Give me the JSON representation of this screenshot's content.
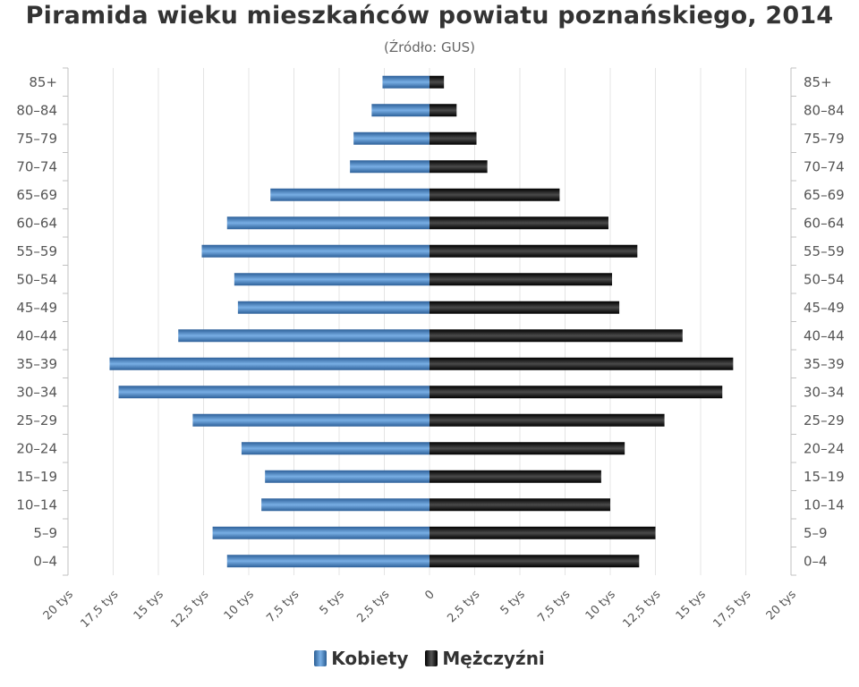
{
  "title": "Piramida wieku mieszkańców powiatu poznańskiego, 2014",
  "subtitle": "(Źródło: GUS)",
  "chart_data": {
    "type": "bar",
    "orientation": "horizontal-pyramid",
    "categories": [
      "0–4",
      "5–9",
      "10–14",
      "15–19",
      "20–24",
      "25–29",
      "30–34",
      "35–39",
      "40–44",
      "45–49",
      "50–54",
      "55–59",
      "60–64",
      "65–69",
      "70–74",
      "75–79",
      "80–84",
      "85+"
    ],
    "series": [
      {
        "name": "Kobiety",
        "side": "left",
        "color": "#4a84c4",
        "values": [
          11200,
          12000,
          9300,
          9100,
          10400,
          13100,
          17200,
          17700,
          13900,
          10600,
          10800,
          12600,
          11200,
          8800,
          4400,
          4200,
          3200,
          2600
        ]
      },
      {
        "name": "Mężczyźni",
        "side": "right",
        "color": "#1a1a1a",
        "values": [
          11600,
          12500,
          10000,
          9500,
          10800,
          13000,
          16200,
          16800,
          14000,
          10500,
          10100,
          11500,
          9900,
          7200,
          3200,
          2600,
          1500,
          800
        ]
      }
    ],
    "xlim": [
      -20000,
      20000
    ],
    "xticks": [
      "20 tys",
      "17,5 tys",
      "15 tys",
      "12,5 tys",
      "10 tys",
      "7,5 tys",
      "5 tys",
      "2,5 tys",
      "0",
      "2,5 tys",
      "5 tys",
      "7,5 tys",
      "10 tys",
      "12,5 tys",
      "15 tys",
      "17,5 tys",
      "20 tys"
    ],
    "grid": true,
    "legend_position": "bottom"
  }
}
